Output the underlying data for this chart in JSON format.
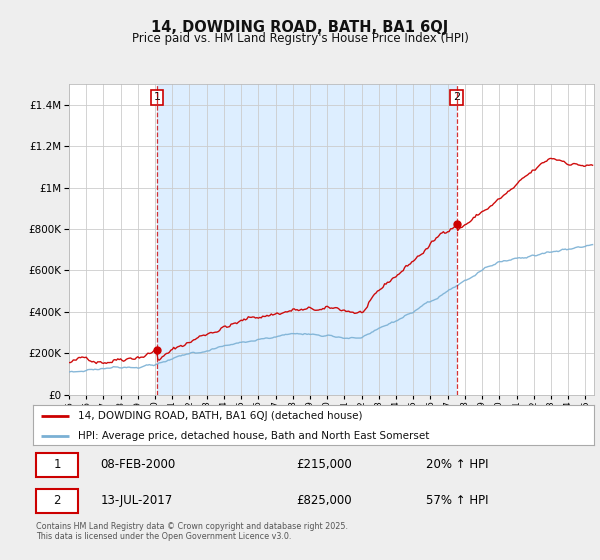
{
  "title": "14, DOWDING ROAD, BATH, BA1 6QJ",
  "subtitle": "Price paid vs. HM Land Registry's House Price Index (HPI)",
  "legend_line1": "14, DOWDING ROAD, BATH, BA1 6QJ (detached house)",
  "legend_line2": "HPI: Average price, detached house, Bath and North East Somerset",
  "transaction1_date": "08-FEB-2000",
  "transaction1_price": "£215,000",
  "transaction1_hpi": "20% ↑ HPI",
  "transaction2_date": "13-JUL-2017",
  "transaction2_price": "£825,000",
  "transaction2_hpi": "57% ↑ HPI",
  "footer": "Contains HM Land Registry data © Crown copyright and database right 2025.\nThis data is licensed under the Open Government Licence v3.0.",
  "red_color": "#cc0000",
  "blue_color": "#7ab0d4",
  "vline_color": "#cc0000",
  "shade_color": "#ddeeff",
  "background_color": "#eeeeee",
  "plot_bg_color": "#ffffff",
  "grid_color": "#cccccc"
}
